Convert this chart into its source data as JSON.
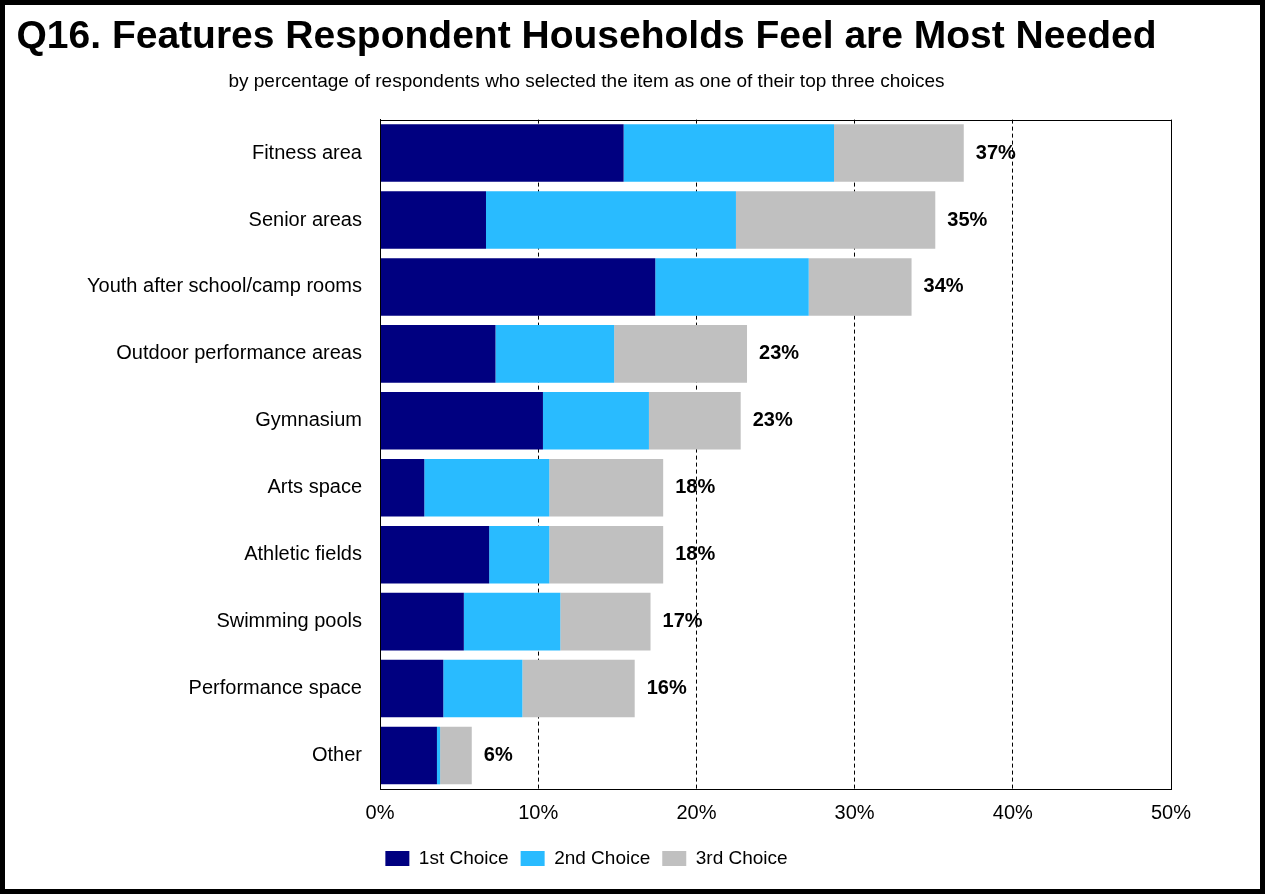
{
  "chart_data": {
    "type": "bar",
    "orientation": "horizontal",
    "stacked": true,
    "title": "Q16. Features Respondent Households Feel are Most Needed",
    "subtitle": "by percentage of respondents who selected the item as one of their top three choices",
    "categories": [
      "Fitness area",
      "Senior areas",
      "Youth after school/camp rooms",
      "Outdoor performance areas",
      "Gymnasium",
      "Arts space",
      "Athletic fields",
      "Swimming pools",
      "Performance space",
      "Other"
    ],
    "series": [
      {
        "name": "1st Choice",
        "color": "#000080",
        "values": [
          15.4,
          6.7,
          17.4,
          7.3,
          10.3,
          2.8,
          6.9,
          5.3,
          4.0,
          3.6
        ]
      },
      {
        "name": "2nd Choice",
        "color": "#29bbff",
        "values": [
          13.3,
          15.8,
          9.7,
          7.5,
          6.7,
          7.9,
          3.8,
          6.1,
          5.0,
          0.2
        ]
      },
      {
        "name": "3rd Choice",
        "color": "#c0c0c0",
        "values": [
          8.2,
          12.6,
          6.5,
          8.4,
          5.8,
          7.2,
          7.2,
          5.7,
          7.1,
          2.0
        ]
      }
    ],
    "totals": [
      "37%",
      "35%",
      "34%",
      "23%",
      "23%",
      "18%",
      "18%",
      "17%",
      "16%",
      "6%"
    ],
    "xlim": [
      0,
      50
    ],
    "xticks": [
      {
        "value": 0,
        "label": "0%"
      },
      {
        "value": 10,
        "label": "10%"
      },
      {
        "value": 20,
        "label": "20%"
      },
      {
        "value": 30,
        "label": "30%"
      },
      {
        "value": 40,
        "label": "40%"
      },
      {
        "value": 50,
        "label": "50%"
      }
    ],
    "grid": "x",
    "legend": "bottom"
  }
}
